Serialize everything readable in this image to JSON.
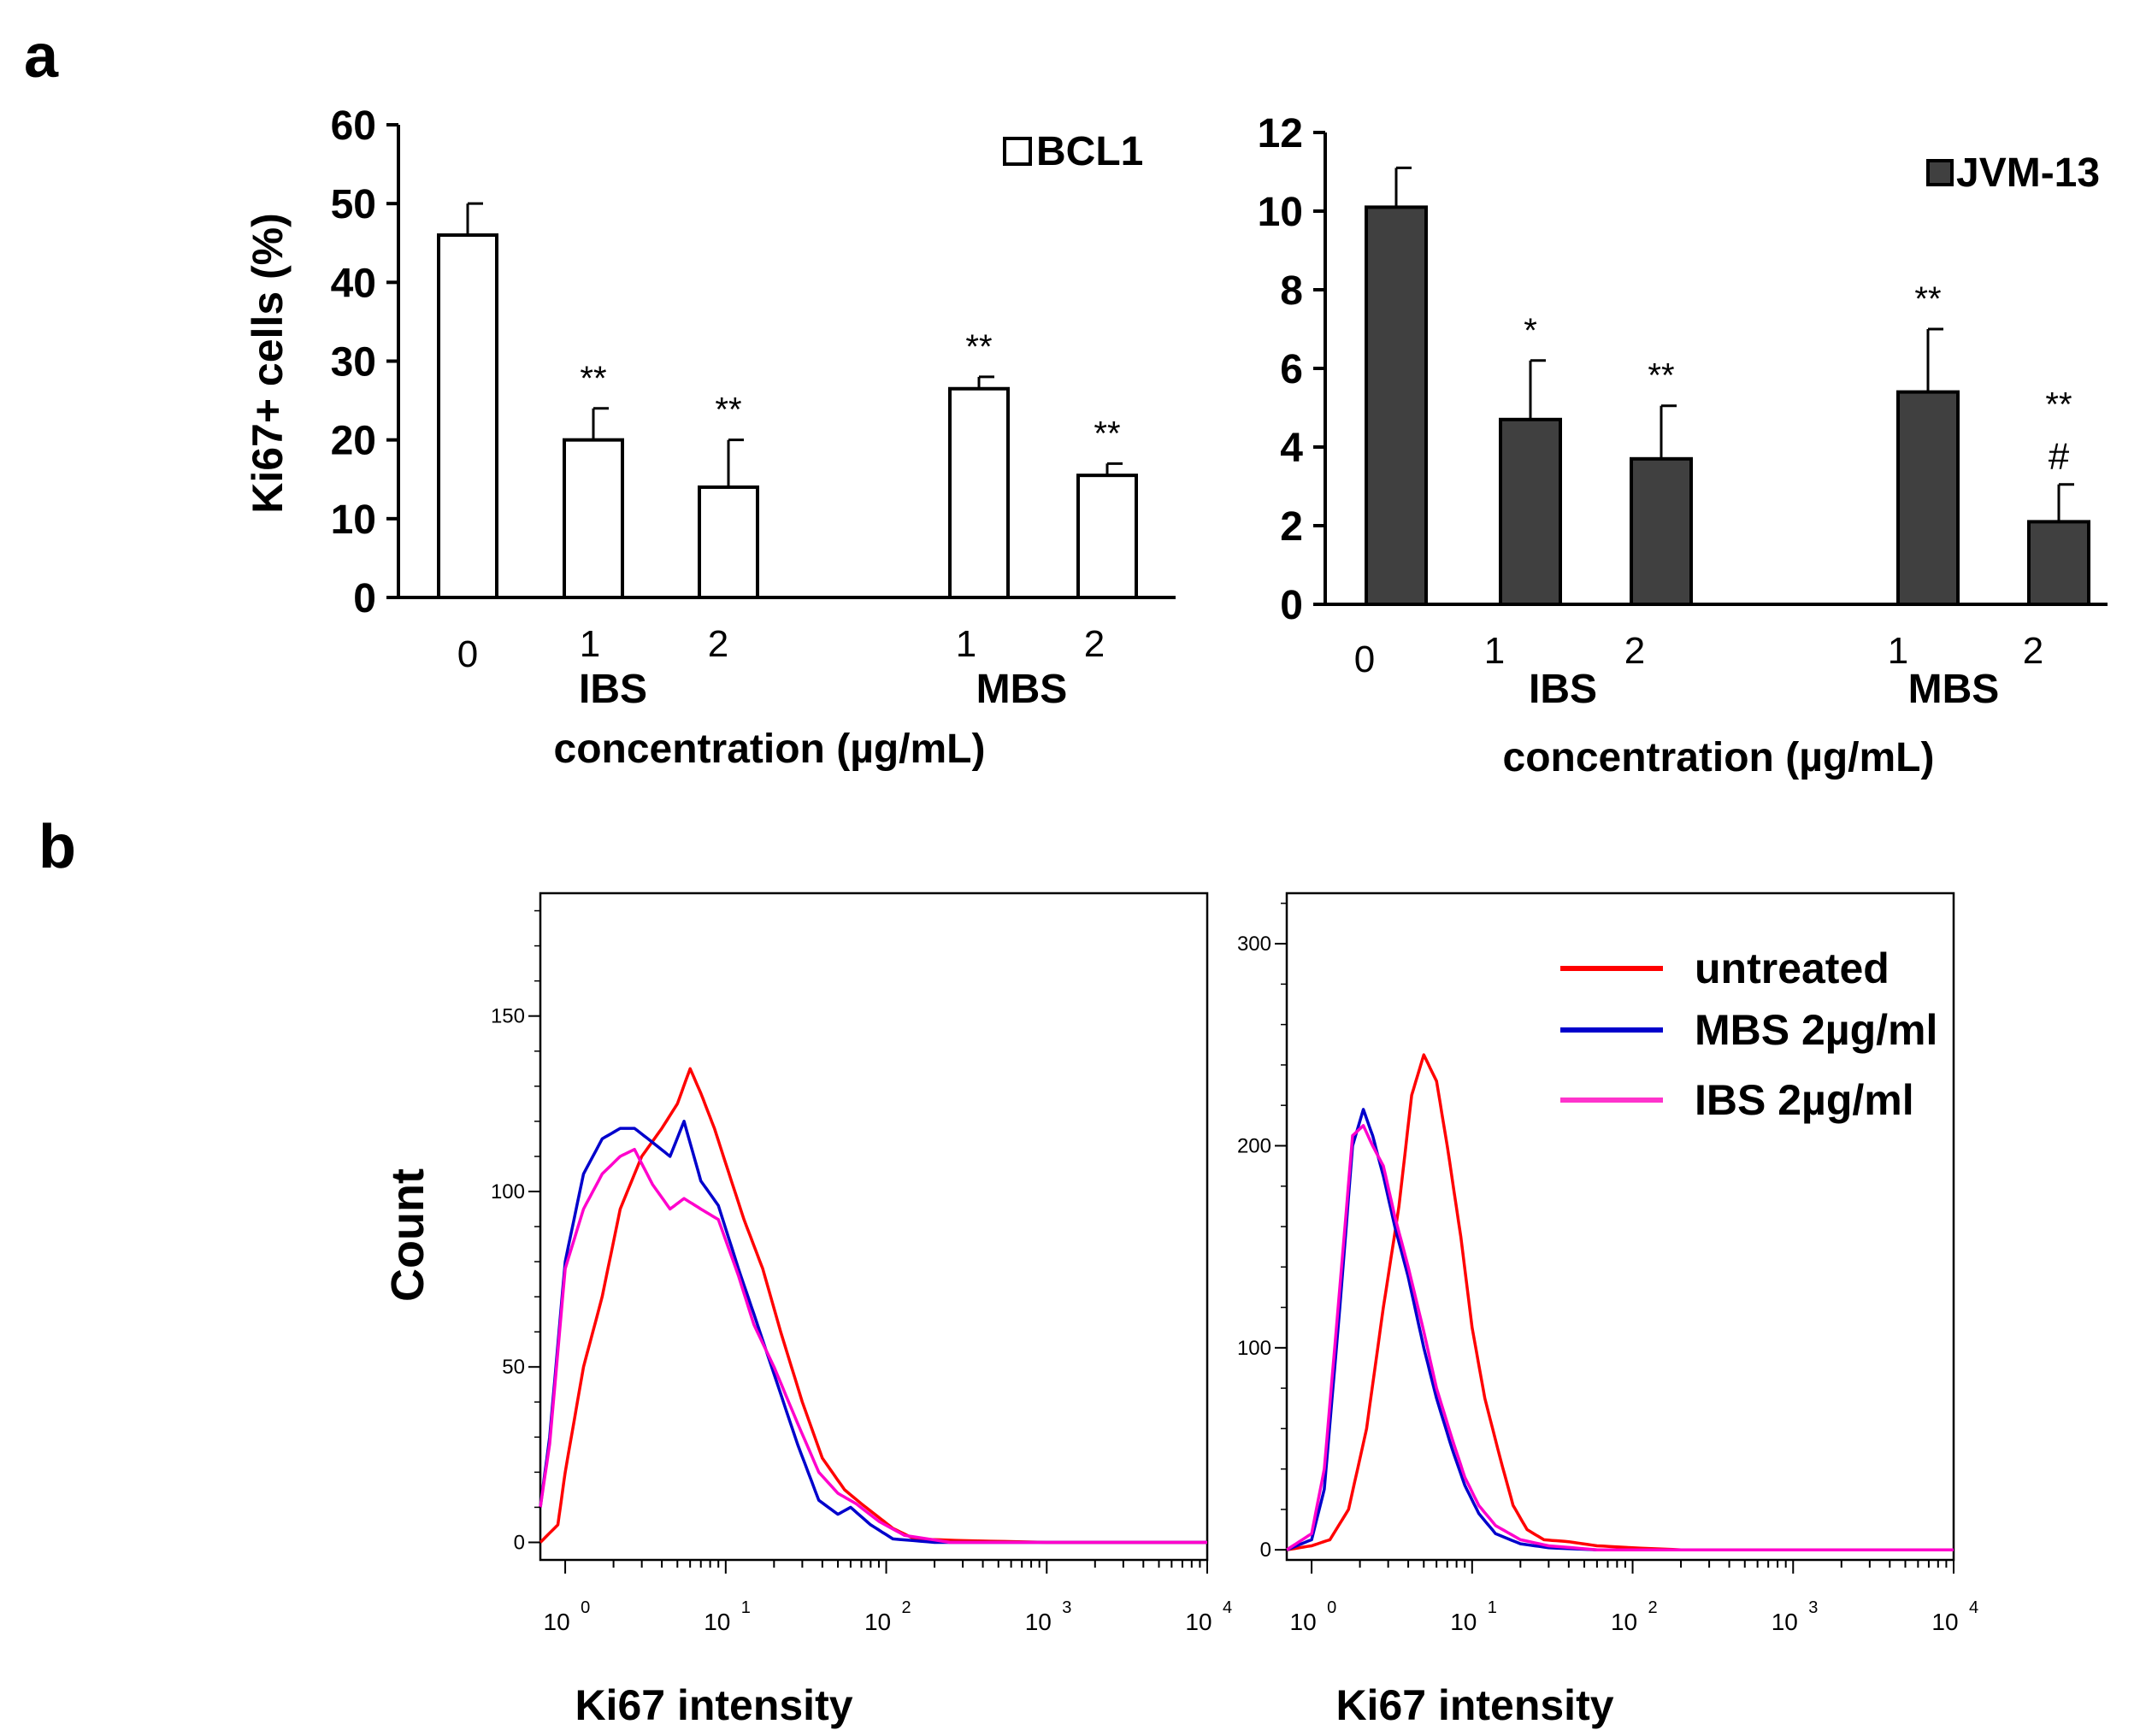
{
  "panel_labels": {
    "a": "a",
    "b": "b"
  },
  "chart_data": [
    {
      "type": "bar",
      "id": "bcl1",
      "legend": "BCL1",
      "bar_color": "#ffffff",
      "ylabel": "Ki67+ cells (%)",
      "xlabel": "concentration (µg/mL)",
      "ylim": [
        0,
        60
      ],
      "yticks": [
        "0",
        "10",
        "20",
        "30",
        "40",
        "50",
        "60"
      ],
      "categories": [
        "0",
        "1",
        "2",
        "1",
        "2"
      ],
      "groups": [
        "IBS",
        "MBS"
      ],
      "values": [
        46,
        20,
        14,
        26.5,
        15.5
      ],
      "errors": [
        4,
        4,
        6,
        1.5,
        1.5
      ],
      "annotations": [
        "",
        "**",
        "**",
        "**",
        "**"
      ],
      "annotations2": [
        "",
        "",
        "",
        "",
        ""
      ]
    },
    {
      "type": "bar",
      "id": "jvm13",
      "legend": "JVM-13",
      "bar_color": "#404040",
      "ylabel": "",
      "xlabel": "concentration (µg/mL)",
      "ylim": [
        0,
        12
      ],
      "yticks": [
        "0",
        "2",
        "4",
        "6",
        "8",
        "10",
        "12"
      ],
      "categories": [
        "0",
        "1",
        "2",
        "1",
        "2"
      ],
      "groups": [
        "IBS",
        "MBS"
      ],
      "values": [
        10.1,
        4.7,
        3.7,
        5.4,
        2.1
      ],
      "errors": [
        1.0,
        1.5,
        1.35,
        1.6,
        0.95
      ],
      "annotations": [
        "",
        "*",
        "**",
        "**",
        "**"
      ],
      "annotations2": [
        "",
        "",
        "",
        "",
        "#"
      ]
    },
    {
      "type": "line",
      "id": "hist-left",
      "xlabel": "Ki67 intensity",
      "ylabel": "Count",
      "x_scale": "log",
      "xlim": [
        0.7,
        10000
      ],
      "ylim": [
        -5,
        185
      ],
      "yticks": [
        0,
        50,
        100,
        150
      ],
      "xtick_base": "10",
      "xtick_exps": [
        "0",
        "1",
        "2",
        "3",
        "4"
      ],
      "series": [
        {
          "name": "untreated",
          "color": "#ff0000",
          "x": [
            0.7,
            0.9,
            1.0,
            1.3,
            1.7,
            2.2,
            3,
            4,
            5,
            6,
            7,
            8.5,
            10,
            13,
            17,
            22,
            30,
            40,
            55,
            70,
            85,
            110,
            150,
            300,
            1000,
            10000
          ],
          "y": [
            0,
            5,
            20,
            50,
            70,
            95,
            110,
            118,
            125,
            135,
            128,
            118,
            108,
            92,
            78,
            60,
            40,
            24,
            15,
            11,
            8,
            4,
            1,
            0.5,
            0,
            0
          ]
        },
        {
          "name": "MBS 2µg/ml",
          "color": "#0000cc",
          "x": [
            0.7,
            0.8,
            1.0,
            1.3,
            1.7,
            2.2,
            2.7,
            3.5,
            4.5,
            5.5,
            7,
            9,
            12,
            15,
            20,
            28,
            38,
            50,
            60,
            80,
            110,
            200,
            10000
          ],
          "y": [
            10,
            30,
            80,
            105,
            115,
            118,
            118,
            114,
            110,
            120,
            103,
            96,
            78,
            65,
            48,
            28,
            12,
            8,
            10,
            5,
            1,
            0,
            0
          ]
        },
        {
          "name": "IBS 2µg/ml",
          "color": "#ff00cc",
          "x": [
            0.7,
            0.8,
            1.0,
            1.3,
            1.7,
            2.2,
            2.7,
            3.5,
            4.5,
            5.5,
            7,
            9,
            12,
            15,
            20,
            28,
            38,
            50,
            65,
            90,
            130,
            250,
            10000
          ],
          "y": [
            10,
            28,
            78,
            95,
            105,
            110,
            112,
            102,
            95,
            98,
            95,
            92,
            76,
            62,
            50,
            34,
            20,
            14,
            11,
            6,
            2,
            0,
            0
          ]
        }
      ]
    },
    {
      "type": "line",
      "id": "hist-right",
      "xlabel": "Ki67 intensity",
      "ylabel": "",
      "x_scale": "log",
      "xlim": [
        0.7,
        10000
      ],
      "ylim": [
        -5,
        325
      ],
      "yticks": [
        0,
        100,
        200,
        300
      ],
      "xtick_base": "10",
      "xtick_exps": [
        "0",
        "1",
        "2",
        "3",
        "4"
      ],
      "legend": [
        "untreated",
        "MBS 2µg/ml",
        "IBS 2µg/ml"
      ],
      "series": [
        {
          "name": "untreated",
          "color": "#ff0000",
          "x": [
            0.7,
            1.0,
            1.3,
            1.7,
            2.2,
            2.8,
            3.5,
            4.2,
            5,
            6,
            7,
            8.5,
            10,
            12,
            15,
            18,
            22,
            28,
            40,
            60,
            100,
            200,
            10000
          ],
          "y": [
            0,
            2,
            5,
            20,
            60,
            120,
            170,
            225,
            245,
            232,
            200,
            155,
            110,
            75,
            45,
            22,
            10,
            5,
            4,
            2,
            1,
            0,
            0
          ]
        },
        {
          "name": "MBS 2µg/ml",
          "color": "#0000cc",
          "x": [
            0.7,
            1.0,
            1.2,
            1.5,
            1.8,
            2.1,
            2.4,
            2.8,
            3.3,
            4,
            5,
            6,
            7.5,
            9,
            11,
            14,
            20,
            30,
            60,
            10000
          ],
          "y": [
            0,
            5,
            30,
            120,
            200,
            218,
            205,
            185,
            160,
            135,
            100,
            75,
            50,
            32,
            18,
            8,
            3,
            1,
            0,
            0
          ]
        },
        {
          "name": "IBS 2µg/ml",
          "color": "#ff00cc",
          "x": [
            0.7,
            1.0,
            1.2,
            1.5,
            1.8,
            2.1,
            2.4,
            2.8,
            3.3,
            4,
            5,
            6,
            7.5,
            9,
            11,
            14,
            20,
            30,
            60,
            10000
          ],
          "y": [
            0,
            8,
            40,
            130,
            205,
            210,
            200,
            190,
            165,
            140,
            108,
            80,
            55,
            36,
            22,
            12,
            5,
            2,
            0,
            0
          ]
        }
      ]
    }
  ]
}
